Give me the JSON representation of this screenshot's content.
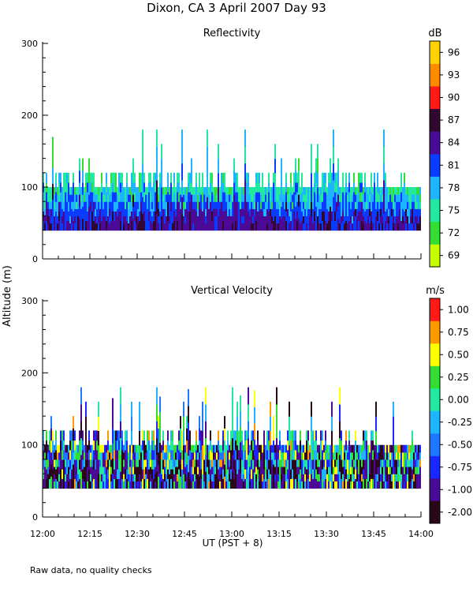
{
  "title": "Dixon, CA   3 April 2007   Day   93",
  "footnote": "Raw data, no quality checks",
  "chart_data": [
    {
      "type": "heatmap",
      "title": "Reflectivity",
      "units": "dB",
      "ylabel": "Altitude (m)",
      "xlabel": "UT  (PST + 8)",
      "ylim": [
        0,
        300
      ],
      "yticks": [
        0,
        100,
        200,
        300
      ],
      "xticks": [
        "12:00",
        "12:15",
        "12:30",
        "12:45",
        "13:00",
        "13:15",
        "13:30",
        "13:45",
        "14:00"
      ],
      "colorbar": {
        "labels": [
          "69",
          "72",
          "75",
          "78",
          "81",
          "84",
          "87",
          "90",
          "93",
          "96"
        ],
        "colors": [
          "#c8ff00",
          "#33dd33",
          "#22e8a0",
          "#1eb4ff",
          "#0a3cff",
          "#4b0a96",
          "#300830",
          "#ff1a1a",
          "#ff8c00",
          "#ffd200"
        ]
      },
      "echo_base_m": 40,
      "echo_top_typical_m": [
        100,
        120
      ]
    },
    {
      "type": "heatmap",
      "title": "Vertical Velocity",
      "units": "m/s",
      "ylabel": "Altitude (m)",
      "xlabel": "UT  (PST + 8)",
      "ylim": [
        0,
        300
      ],
      "yticks": [
        0,
        100,
        200,
        300
      ],
      "xticks": [
        "12:00",
        "12:15",
        "12:30",
        "12:45",
        "13:00",
        "13:15",
        "13:30",
        "13:45",
        "14:00"
      ],
      "colorbar": {
        "labels": [
          "-2.00",
          "-1.00",
          "-0.75",
          "-0.50",
          "-0.25",
          "0.00",
          "0.25",
          "0.50",
          "0.75",
          "1.00"
        ],
        "colors": [
          "#2a0818",
          "#4b0a96",
          "#1a28ff",
          "#1e78ff",
          "#1eb4ff",
          "#22e8a0",
          "#33dd33",
          "#ffff00",
          "#ff9900",
          "#ff1a1a"
        ]
      },
      "echo_base_m": 40,
      "echo_top_typical_m": [
        100,
        120
      ]
    }
  ]
}
